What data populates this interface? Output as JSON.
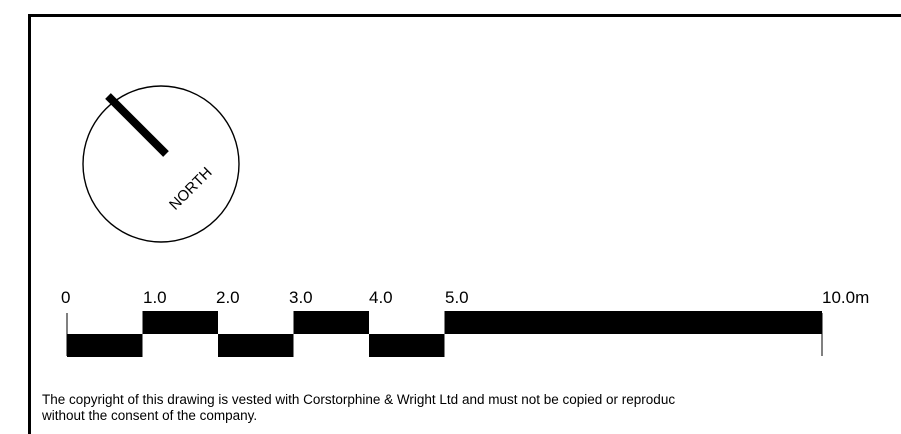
{
  "north_arrow": {
    "label": "NORTH",
    "icon": "north-arrow-icon"
  },
  "scale_bar": {
    "ticks": [
      "0",
      "1.0",
      "2.0",
      "3.0",
      "4.0",
      "5.0",
      "10.0m"
    ],
    "unit": "m",
    "segments": [
      {
        "from": 0,
        "to": 1,
        "position": "lower"
      },
      {
        "from": 1,
        "to": 2,
        "position": "upper"
      },
      {
        "from": 2,
        "to": 3,
        "position": "lower"
      },
      {
        "from": 3,
        "to": 4,
        "position": "upper"
      },
      {
        "from": 4,
        "to": 5,
        "position": "lower"
      },
      {
        "from": 5,
        "to": 10,
        "position": "upper"
      }
    ],
    "color": "#000000"
  },
  "copyright": {
    "line1": "The copyright of this drawing is vested with Corstorphine & Wright Ltd and must not be copied or reproduc",
    "line2": "without the consent of the company."
  }
}
